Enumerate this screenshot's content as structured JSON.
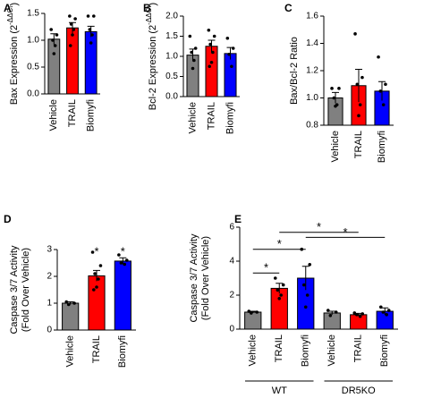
{
  "chart_data": [
    {
      "type": "bar",
      "panel": "A",
      "ylabel": {
        "text": "Bax Expression (2",
        "superscript": "-ΔΔCt",
        "end": ")"
      },
      "categories": [
        "Vehicle",
        "TRAIL",
        "Biomyfi"
      ],
      "values": [
        1.02,
        1.23,
        1.16
      ],
      "errors": [
        0.1,
        0.1,
        0.1
      ],
      "points": [
        [
          1.2,
          1.1,
          1.0,
          0.9,
          0.75
        ],
        [
          1.45,
          1.4,
          1.3,
          1.2,
          1.1,
          0.9
        ],
        [
          1.45,
          1.45,
          1.2,
          1.1,
          0.95
        ]
      ],
      "colors": [
        "#808080",
        "#ff0000",
        "#0000ff"
      ],
      "ylim": [
        0,
        1.5
      ],
      "yticks": [
        {
          "value": 0,
          "label": "0.0"
        },
        0.5,
        {
          "value": 1,
          "label": "1.0"
        },
        1.5
      ]
    },
    {
      "type": "bar",
      "panel": "B",
      "ylabel": {
        "text": "Bcl-2 Expression (2",
        "superscript": "-ΔΔCt",
        "end": ")"
      },
      "categories": [
        "Vehicle",
        "TRAIL",
        "Biomyfi"
      ],
      "values": [
        1.03,
        1.25,
        1.07
      ],
      "errors": [
        0.15,
        0.15,
        0.15
      ],
      "points": [
        [
          1.5,
          1.2,
          1.1,
          0.9,
          0.7
        ],
        [
          1.65,
          1.5,
          1.3,
          1.1,
          0.85,
          0.75
        ],
        [
          1.45,
          1.2,
          1.05,
          0.75
        ]
      ],
      "colors": [
        "#808080",
        "#ff0000",
        "#0000ff"
      ],
      "ylim": [
        0,
        2
      ],
      "yticks": [
        {
          "value": 0,
          "label": "0.0"
        },
        0.5,
        {
          "value": 1,
          "label": "1.0"
        },
        1.5,
        {
          "value": 2,
          "label": "2.0"
        }
      ]
    },
    {
      "type": "bar",
      "panel": "C",
      "ylabel": "Bax/Bcl-2 Ratio",
      "categories": [
        "Vehicle",
        "TRAIL",
        "Biomyfi"
      ],
      "values": [
        1.0,
        1.09,
        1.05
      ],
      "errors": [
        0.04,
        0.12,
        0.07
      ],
      "points": [
        [
          1.07,
          1.07,
          1.0,
          0.95,
          0.94
        ],
        [
          1.47,
          1.15,
          1.1,
          0.95,
          0.87
        ],
        [
          1.3,
          1.1,
          1.05,
          0.95
        ]
      ],
      "colors": [
        "#808080",
        "#ff0000",
        "#0000ff"
      ],
      "ylim": [
        0.8,
        1.6
      ],
      "yticks": [
        0.8,
        {
          "value": 1,
          "label": "1.0"
        },
        1.2,
        1.4,
        1.6
      ]
    },
    {
      "type": "bar",
      "panel": "D",
      "ylabel": [
        "Caspase 3/7 Activity",
        "(Fold Over Vehicle)"
      ],
      "categories": [
        "Vehicle",
        "TRAIL",
        "Biomyfi"
      ],
      "values": [
        1.0,
        2.02,
        2.57
      ],
      "errors": [
        0.05,
        0.2,
        0.12
      ],
      "points": [
        [
          1.05,
          1.0,
          0.95
        ],
        [
          2.9,
          2.4,
          2.1,
          1.9,
          1.6,
          1.5
        ],
        [
          2.8,
          2.6,
          2.5,
          2.45
        ]
      ],
      "colors": [
        "#808080",
        "#ff0000",
        "#0000ff"
      ],
      "ylim": [
        0,
        3
      ],
      "yticks": [
        0,
        1,
        2,
        3
      ],
      "annotations": [
        {
          "category": 1,
          "y": 2.9,
          "label": "*"
        },
        {
          "category": 2,
          "y": 2.9,
          "label": "*"
        }
      ]
    },
    {
      "type": "bar",
      "panel": "E",
      "ylabel": [
        "Caspase 3/7 Activity",
        "(Fold Over Vehicle)"
      ],
      "categories": [
        "Vehicle",
        "TRAIL",
        "Biomyfi",
        "Vehicle",
        "TRAIL",
        "Biomyfi"
      ],
      "groups": [
        "WT",
        "DR5KO"
      ],
      "values": [
        1.0,
        2.4,
        3.0,
        0.95,
        0.85,
        1.05
      ],
      "errors": [
        0.05,
        0.3,
        0.7,
        0.1,
        0.08,
        0.2
      ],
      "points": [
        [
          1.05,
          1.0,
          0.95
        ],
        [
          3.0,
          2.6,
          2.3,
          2.0,
          1.8
        ],
        [
          4.7,
          3.8,
          2.6,
          2.0,
          1.3
        ],
        [
          1.1,
          1.0,
          0.8
        ],
        [
          0.95,
          0.9,
          0.85,
          0.75
        ],
        [
          1.3,
          1.1,
          1.0,
          0.85
        ]
      ],
      "colors": [
        "#808080",
        "#ff0000",
        "#0000ff",
        "#808080",
        "#ff0000",
        "#0000ff"
      ],
      "ylim": [
        0,
        6
      ],
      "yticks": [
        0,
        2,
        4,
        6
      ],
      "brackets": [
        {
          "from": 0,
          "to": 1,
          "y": 3.3,
          "label": "*"
        },
        {
          "from": 0,
          "to": 2,
          "y": 4.7,
          "label": "*"
        },
        {
          "from": 2,
          "to": 5,
          "y": 5.4,
          "label": "*"
        },
        {
          "from": 1,
          "to": 4,
          "y": 5.7,
          "label": "*"
        }
      ]
    }
  ]
}
